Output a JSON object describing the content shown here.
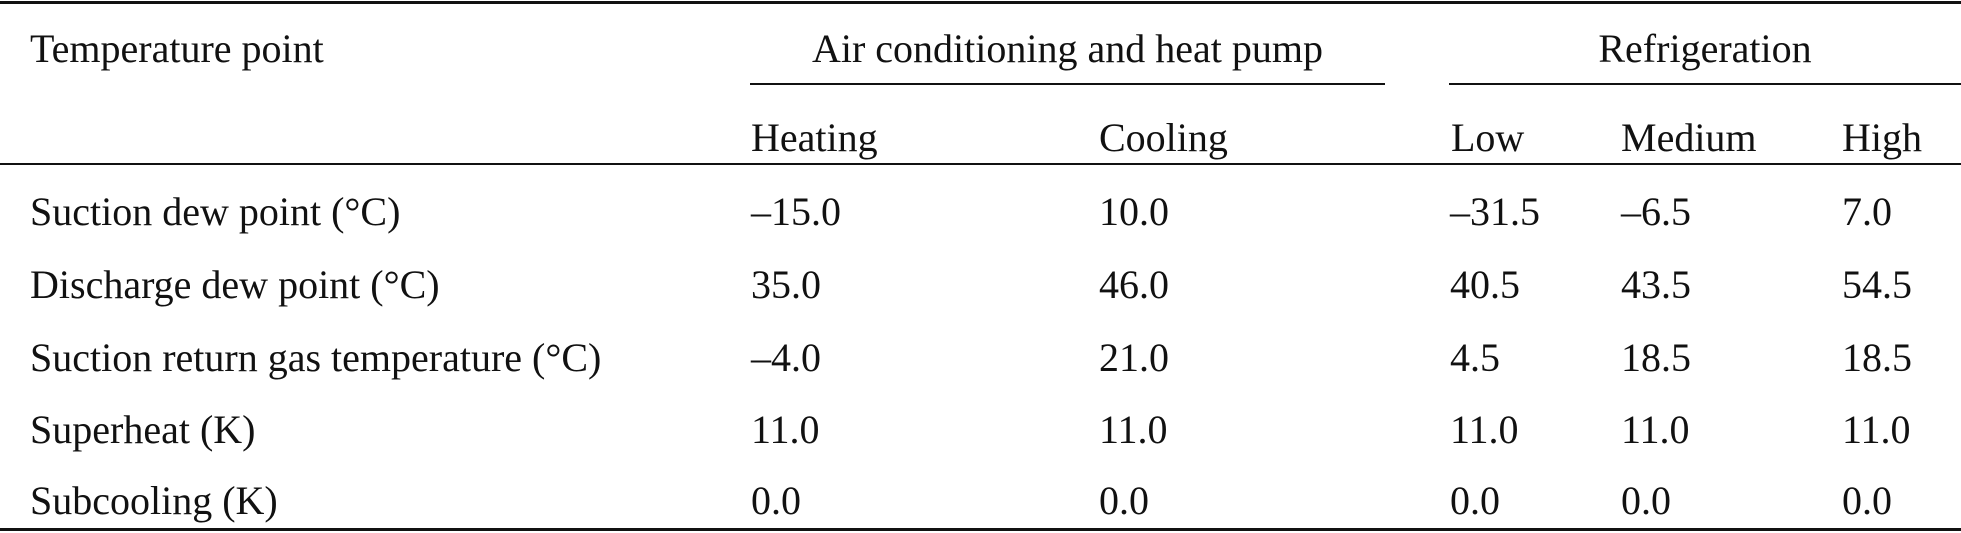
{
  "table": {
    "header": {
      "row_label": "Temperature point",
      "groups": [
        {
          "label": "Air conditioning and heat pump"
        },
        {
          "label": "Refrigeration"
        }
      ],
      "columns": [
        "Heating",
        "Cooling",
        "Low",
        "Medium",
        "High"
      ]
    },
    "rows": [
      {
        "label": "Suction dew point (°C)",
        "values": [
          "–15.0",
          "10.0",
          "–31.5",
          "–6.5",
          "7.0"
        ]
      },
      {
        "label": "Discharge dew point (°C)",
        "values": [
          "35.0",
          "46.0",
          "40.5",
          "43.5",
          "54.5"
        ]
      },
      {
        "label": "Suction return gas temperature (°C)",
        "values": [
          "–4.0",
          "21.0",
          "4.5",
          "18.5",
          "18.5"
        ]
      },
      {
        "label": "Superheat (K)",
        "values": [
          "11.0",
          "11.0",
          "11.0",
          "11.0",
          "11.0"
        ]
      },
      {
        "label": "Subcooling (K)",
        "values": [
          "0.0",
          "0.0",
          "0.0",
          "0.0",
          "0.0"
        ]
      }
    ]
  }
}
